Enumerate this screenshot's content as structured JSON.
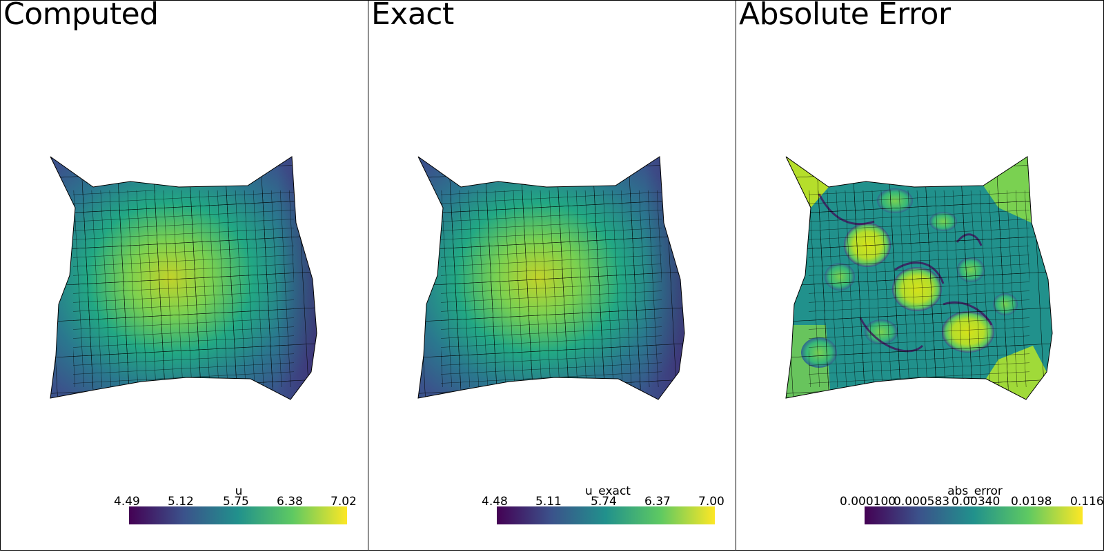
{
  "panels": [
    {
      "title": "Computed",
      "colorbar": {
        "title": "u",
        "ticks": [
          "4.49",
          "5.12",
          "5.75",
          "6.38",
          "7.02"
        ]
      }
    },
    {
      "title": "Exact",
      "colorbar": {
        "title": "u_exact",
        "ticks": [
          "4.48",
          "5.11",
          "5.74",
          "6.37",
          "7.00"
        ]
      }
    },
    {
      "title": "Absolute Error",
      "colorbar": {
        "title": "abs_error",
        "ticks": [
          "0.000100",
          "0.000583",
          "0.00340",
          "0.0198",
          "0.116"
        ]
      }
    }
  ],
  "colormap": {
    "name": "viridis",
    "stops": [
      "#440154",
      "#3b528b",
      "#21918c",
      "#5ec962",
      "#fde725"
    ]
  }
}
